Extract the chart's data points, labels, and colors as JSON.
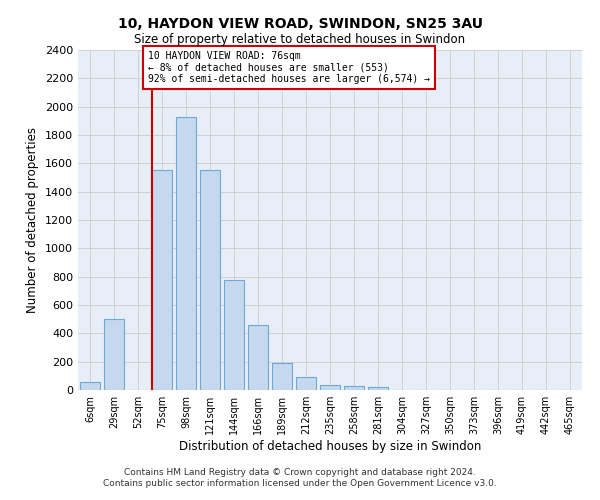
{
  "title": "10, HAYDON VIEW ROAD, SWINDON, SN25 3AU",
  "subtitle": "Size of property relative to detached houses in Swindon",
  "xlabel": "Distribution of detached houses by size in Swindon",
  "ylabel": "Number of detached properties",
  "bar_color": "#c5d8ee",
  "bar_edge_color": "#6aaad4",
  "annotation_box_color": "#cc0000",
  "background_color": "#e8eef8",
  "tick_labels": [
    "6sqm",
    "29sqm",
    "52sqm",
    "75sqm",
    "98sqm",
    "121sqm",
    "144sqm",
    "166sqm",
    "189sqm",
    "212sqm",
    "235sqm",
    "258sqm",
    "281sqm",
    "304sqm",
    "327sqm",
    "350sqm",
    "373sqm",
    "396sqm",
    "419sqm",
    "442sqm",
    "465sqm"
  ],
  "bar_heights": [
    60,
    500,
    0,
    1550,
    1930,
    1550,
    780,
    460,
    190,
    90,
    35,
    25,
    20,
    0,
    0,
    0,
    0,
    0,
    0,
    0,
    0
  ],
  "annotation_text": "10 HAYDON VIEW ROAD: 76sqm\n← 8% of detached houses are smaller (553)\n92% of semi-detached houses are larger (6,574) →",
  "red_line_bin_index": 3,
  "ylim": [
    0,
    2400
  ],
  "yticks": [
    0,
    200,
    400,
    600,
    800,
    1000,
    1200,
    1400,
    1600,
    1800,
    2000,
    2200,
    2400
  ],
  "footer_line1": "Contains HM Land Registry data © Crown copyright and database right 2024.",
  "footer_line2": "Contains public sector information licensed under the Open Government Licence v3.0.",
  "figsize": [
    6.0,
    5.0
  ],
  "dpi": 100
}
